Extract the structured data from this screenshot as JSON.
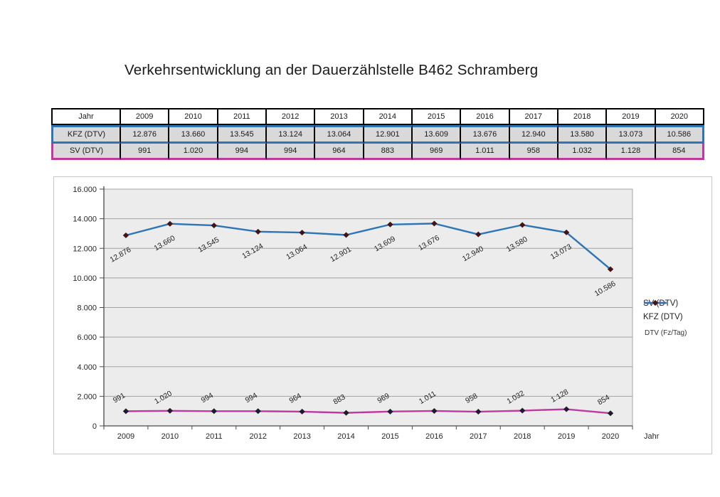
{
  "page": {
    "title": "Verkehrsentwicklung an der Dauerzählstelle B462 Schramberg"
  },
  "colors": {
    "kfz_accent": "#2e75b6",
    "sv_accent": "#c0399f",
    "table_row_fill": "#d9d9d9",
    "plot_background": "#ececec",
    "gridline": "#a3a3a3",
    "axis": "#4a4a4a"
  },
  "table": {
    "header_label": "Jahr",
    "years": [
      "2009",
      "2010",
      "2011",
      "2012",
      "2013",
      "2014",
      "2015",
      "2016",
      "2017",
      "2018",
      "2019",
      "2020"
    ],
    "rows": [
      {
        "key": "kfz",
        "label": "KFZ (DTV)",
        "values": [
          "12.876",
          "13.660",
          "13.545",
          "13.124",
          "13.064",
          "12.901",
          "13.609",
          "13.676",
          "12.940",
          "13.580",
          "13.073",
          "10.586"
        ]
      },
      {
        "key": "sv",
        "label": "SV (DTV)",
        "values": [
          "991",
          "1.020",
          "994",
          "994",
          "964",
          "883",
          "969",
          "1.011",
          "958",
          "1.032",
          "1.128",
          "854"
        ]
      }
    ]
  },
  "chart_data": {
    "type": "line",
    "title": "Verkehrsentwicklung an der Dauerzählstelle B462 Schramberg",
    "categories": [
      "2009",
      "2010",
      "2011",
      "2012",
      "2013",
      "2014",
      "2015",
      "2016",
      "2017",
      "2018",
      "2019",
      "2020"
    ],
    "series": [
      {
        "name": "SV (DTV)",
        "color": "#c0399f",
        "marker_color": "#1c1c2e",
        "label_position": "above",
        "values": [
          991,
          1020,
          994,
          994,
          964,
          883,
          969,
          1011,
          958,
          1032,
          1128,
          854
        ],
        "labels": [
          "991",
          "1.020",
          "994",
          "994",
          "964",
          "883",
          "969",
          "1.011",
          "958",
          "1.032",
          "1.128",
          "854"
        ]
      },
      {
        "name": "KFZ (DTV)",
        "color": "#2e75b6",
        "marker_color": "#421414",
        "label_position": "below",
        "values": [
          12876,
          13660,
          13545,
          13124,
          13064,
          12901,
          13609,
          13676,
          12940,
          13580,
          13073,
          10586
        ],
        "labels": [
          "12.876",
          "13.660",
          "13.545",
          "13.124",
          "13.064",
          "12.901",
          "13.609",
          "13.676",
          "12.940",
          "13.580",
          "13.073",
          "10.586"
        ]
      }
    ],
    "xlabel": "Jahr",
    "ylabel": "",
    "ylim": [
      0,
      16000
    ],
    "ytick_step": 2000,
    "ytick_labels": [
      "0",
      "2.000",
      "4.000",
      "6.000",
      "8.000",
      "10.000",
      "12.000",
      "14.000",
      "16.000"
    ],
    "grid": true,
    "legend_position": "right",
    "legend_note": "DTV (Fz/Tag)"
  }
}
